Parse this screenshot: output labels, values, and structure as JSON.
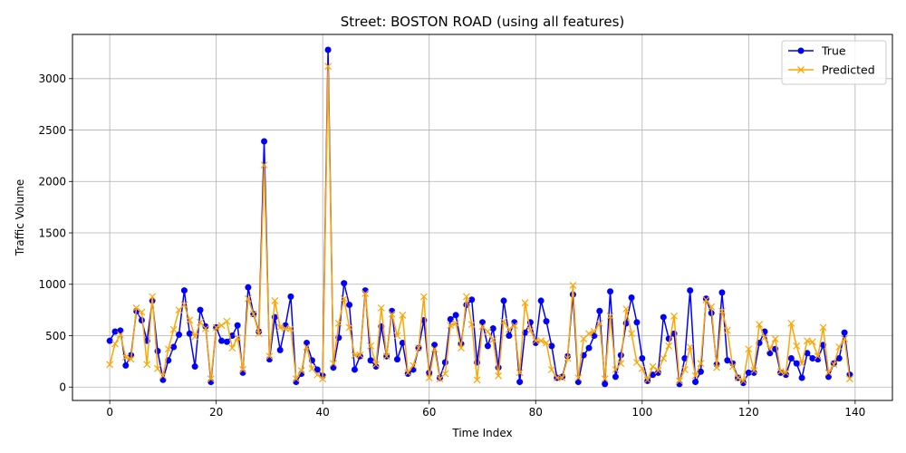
{
  "chart_data": {
    "type": "line",
    "title": "Street: BOSTON ROAD (using all features)",
    "xlabel": "Time Index",
    "ylabel": "Traffic Volume",
    "xlim": [
      -7,
      147
    ],
    "ylim": [
      -130,
      3430
    ],
    "xticks": [
      0,
      20,
      40,
      60,
      80,
      100,
      120,
      140
    ],
    "yticks": [
      0,
      500,
      1000,
      1500,
      2000,
      2500,
      3000
    ],
    "grid": true,
    "legend_position": "top-right",
    "series": [
      {
        "name": "True",
        "color": "#0000ff",
        "marker": "circle",
        "values": [
          450,
          540,
          550,
          210,
          310,
          740,
          650,
          450,
          840,
          350,
          70,
          260,
          390,
          510,
          940,
          520,
          200,
          750,
          590,
          50,
          580,
          450,
          440,
          500,
          600,
          140,
          970,
          710,
          540,
          2390,
          270,
          680,
          360,
          600,
          880,
          50,
          130,
          430,
          260,
          170,
          110,
          3280,
          190,
          480,
          1010,
          800,
          170,
          300,
          940,
          260,
          200,
          590,
          300,
          740,
          270,
          430,
          130,
          170,
          380,
          650,
          140,
          410,
          90,
          240,
          660,
          700,
          420,
          800,
          850,
          240,
          630,
          400,
          570,
          190,
          840,
          500,
          630,
          50,
          530,
          630,
          430,
          840,
          640,
          400,
          90,
          100,
          300,
          900,
          50,
          310,
          380,
          500,
          740,
          30,
          930,
          100,
          310,
          620,
          870,
          630,
          280,
          60,
          120,
          140,
          680,
          470,
          520,
          30,
          280,
          940,
          50,
          150,
          860,
          720,
          220,
          920,
          260,
          230,
          90,
          40,
          140,
          140,
          430,
          540,
          330,
          370,
          140,
          120,
          280,
          230,
          90,
          330,
          280,
          270,
          410,
          100,
          230,
          280,
          530,
          120
        ]
      },
      {
        "name": "Predicted",
        "color": "#ffa500",
        "marker": "x",
        "values": [
          220,
          420,
          510,
          290,
          270,
          770,
          730,
          220,
          880,
          180,
          110,
          370,
          560,
          750,
          800,
          650,
          490,
          630,
          570,
          80,
          580,
          600,
          640,
          380,
          480,
          170,
          860,
          710,
          520,
          2160,
          300,
          840,
          580,
          570,
          570,
          80,
          160,
          390,
          180,
          120,
          80,
          3120,
          230,
          620,
          860,
          580,
          310,
          310,
          910,
          400,
          220,
          770,
          300,
          710,
          500,
          700,
          140,
          210,
          380,
          880,
          90,
          370,
          80,
          130,
          600,
          620,
          380,
          880,
          610,
          70,
          590,
          540,
          460,
          110,
          640,
          560,
          600,
          140,
          820,
          550,
          450,
          450,
          430,
          170,
          90,
          90,
          280,
          990,
          90,
          470,
          520,
          540,
          620,
          80,
          690,
          170,
          230,
          760,
          520,
          240,
          180,
          70,
          200,
          160,
          280,
          400,
          690,
          60,
          170,
          390,
          110,
          230,
          850,
          780,
          190,
          740,
          550,
          200,
          90,
          60,
          370,
          160,
          610,
          480,
          370,
          470,
          150,
          140,
          620,
          400,
          230,
          450,
          440,
          300,
          580,
          140,
          220,
          390,
          470,
          80
        ]
      }
    ]
  }
}
